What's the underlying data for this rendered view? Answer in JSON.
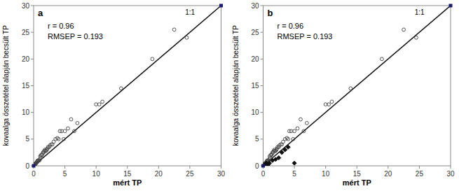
{
  "chart_data": [
    {
      "type": "scatter",
      "title": "a",
      "xlabel": "mért TP",
      "ylabel": "kovaalga összetétel alapján becsült TP",
      "annotations": [
        "r = 0.96",
        "RMSEP = 0.193",
        "1:1"
      ],
      "xlim": [
        0,
        30
      ],
      "ylim": [
        0,
        30
      ],
      "xticks": [
        0,
        5,
        10,
        15,
        20,
        25,
        30
      ],
      "yticks": [
        0,
        5,
        10,
        15,
        20,
        25,
        30
      ],
      "series": [
        {
          "type": "line",
          "x": [
            0,
            30
          ],
          "values": [
            0,
            30
          ],
          "color": "#111111"
        },
        {
          "type": "scatter",
          "marker": "circle-open",
          "color": "#444444",
          "x": [
            0.05,
            0.1,
            0.15,
            0.2,
            0.25,
            0.3,
            0.35,
            0.4,
            0.5,
            0.55,
            0.6,
            0.65,
            0.7,
            0.8,
            0.9,
            1.0,
            1.05,
            1.1,
            1.2,
            1.3,
            1.4,
            1.5,
            1.6,
            1.7,
            1.8,
            1.9,
            2.0,
            2.1,
            2.2,
            2.3,
            2.5,
            2.6,
            2.8,
            3.0,
            3.2,
            3.5,
            3.8,
            4.0,
            4.2,
            4.5,
            4.8,
            5.0,
            5.5,
            6.0,
            6.5,
            7.0,
            10.0,
            10.5,
            11.0,
            14.0,
            19.0,
            22.5,
            24.5
          ],
          "values": [
            0.1,
            0.25,
            0.3,
            0.2,
            0.4,
            0.3,
            0.5,
            0.5,
            0.6,
            0.8,
            0.8,
            1.0,
            0.9,
            1.0,
            1.0,
            1.2,
            1.8,
            1.5,
            2.0,
            2.0,
            2.2,
            2.5,
            2.5,
            2.8,
            3.0,
            2.8,
            2.8,
            3.0,
            3.2,
            3.5,
            3.5,
            3.8,
            4.0,
            4.0,
            4.5,
            5.0,
            5.2,
            5.0,
            6.5,
            6.5,
            5.0,
            6.5,
            7.0,
            8.7,
            6.5,
            8.0,
            11.5,
            11.5,
            12.0,
            14.5,
            20.0,
            25.5,
            24.0
          ]
        },
        {
          "type": "scatter",
          "marker": "square",
          "color": "#1a1a6e",
          "x": [
            0,
            30
          ],
          "values": [
            0,
            30
          ]
        }
      ]
    },
    {
      "type": "scatter",
      "title": "b",
      "xlabel": "mért TP",
      "ylabel": "kovaalga összetétel alapján becsült TP",
      "annotations": [
        "r = 0.96",
        "RMSEP = 0.193",
        "1:1"
      ],
      "xlim": [
        0,
        30
      ],
      "ylim": [
        0,
        30
      ],
      "xticks": [
        0,
        5,
        10,
        15,
        20,
        25,
        30
      ],
      "yticks": [
        0,
        5,
        10,
        15,
        20,
        25,
        30
      ],
      "series": [
        {
          "type": "line",
          "x": [
            0,
            30
          ],
          "values": [
            0,
            30
          ],
          "color": "#111111"
        },
        {
          "type": "scatter",
          "marker": "circle-open",
          "color": "#444444",
          "x": [
            0.05,
            0.1,
            0.15,
            0.2,
            0.25,
            0.3,
            0.35,
            0.4,
            0.5,
            0.55,
            0.6,
            0.65,
            0.7,
            0.8,
            0.9,
            1.0,
            1.05,
            1.1,
            1.2,
            1.3,
            1.4,
            1.5,
            1.6,
            1.7,
            1.8,
            1.9,
            2.0,
            2.1,
            2.2,
            2.3,
            2.5,
            2.6,
            2.8,
            3.0,
            3.2,
            3.5,
            3.8,
            4.0,
            4.2,
            4.5,
            4.8,
            5.0,
            5.5,
            6.0,
            6.5,
            7.0,
            10.0,
            10.5,
            11.0,
            14.0,
            19.0,
            22.5,
            24.5
          ],
          "values": [
            0.1,
            0.25,
            0.3,
            0.2,
            0.4,
            0.3,
            0.5,
            0.5,
            0.6,
            0.8,
            0.8,
            1.0,
            0.9,
            1.0,
            1.0,
            1.2,
            1.8,
            1.5,
            2.0,
            2.0,
            2.2,
            2.5,
            2.5,
            2.8,
            3.0,
            2.8,
            2.8,
            3.0,
            3.2,
            3.5,
            3.5,
            3.8,
            4.0,
            4.0,
            4.5,
            5.0,
            5.2,
            5.0,
            6.5,
            6.5,
            5.0,
            6.5,
            7.0,
            8.7,
            6.5,
            8.0,
            11.5,
            11.5,
            12.0,
            14.5,
            20.0,
            25.5,
            24.0
          ]
        },
        {
          "type": "scatter",
          "marker": "diamond",
          "color": "#111111",
          "x": [
            0.1,
            0.3,
            0.5,
            0.8,
            1.0,
            1.5,
            2.0,
            2.5,
            3.0,
            3.5,
            4.0,
            5.0
          ],
          "values": [
            0.05,
            0.1,
            0.5,
            0.2,
            0.5,
            1.0,
            1.2,
            1.5,
            2.5,
            3.0,
            3.5,
            0.5
          ]
        },
        {
          "type": "scatter",
          "marker": "square",
          "color": "#1a1a6e",
          "x": [
            0,
            30
          ],
          "values": [
            0,
            30
          ]
        }
      ]
    }
  ]
}
